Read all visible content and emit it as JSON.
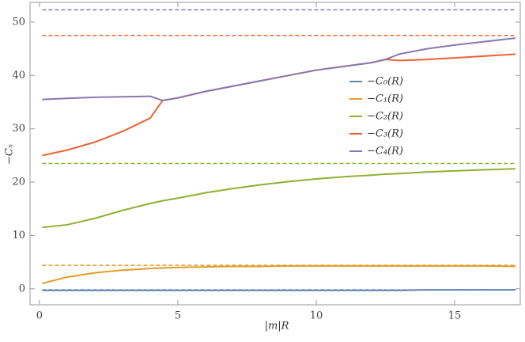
{
  "chart_data": {
    "type": "line",
    "x_label": "|m|R",
    "y_label": "−Cₙ",
    "xlim": [
      -0.34,
      17.37
    ],
    "ylim": [
      -3.0,
      53.7
    ],
    "xticks": [
      0,
      5,
      10,
      15
    ],
    "yticks": [
      0,
      10,
      20,
      30,
      40,
      50
    ],
    "x": [
      0.1,
      1,
      2,
      3,
      4,
      4.45,
      5,
      6,
      7,
      8,
      9,
      10,
      11,
      12,
      12.5,
      13,
      14,
      15,
      16,
      17.2
    ],
    "series": [
      {
        "name": "−C₀(R)",
        "color": "#5e81b5",
        "values": [
          -0.3,
          -0.3,
          -0.3,
          -0.3,
          -0.3,
          -0.3,
          -0.3,
          -0.3,
          -0.3,
          -0.3,
          -0.3,
          -0.3,
          -0.3,
          -0.3,
          -0.3,
          -0.3,
          -0.2,
          -0.2,
          -0.2,
          -0.2
        ]
      },
      {
        "name": "−C₁(R)",
        "color": "#e19c24",
        "values": [
          1.0,
          2.2,
          3.0,
          3.5,
          3.8,
          3.9,
          4.0,
          4.1,
          4.2,
          4.2,
          4.3,
          4.3,
          4.3,
          4.3,
          4.3,
          4.3,
          4.3,
          4.3,
          4.3,
          4.2
        ]
      },
      {
        "name": "−C₂(R)",
        "color": "#8fb032",
        "values": [
          11.5,
          12.0,
          13.2,
          14.7,
          16.0,
          16.5,
          17.0,
          18.0,
          18.8,
          19.5,
          20.1,
          20.6,
          21.0,
          21.3,
          21.5,
          21.6,
          21.9,
          22.1,
          22.3,
          22.5
        ]
      },
      {
        "name": "−C₃(R)",
        "color": "#eb6235",
        "values": [
          25.0,
          26.0,
          27.5,
          29.5,
          32.0,
          35.3,
          35.8,
          37.0,
          38.0,
          39.0,
          40.0,
          41.0,
          41.7,
          42.4,
          43.0,
          42.8,
          43.0,
          43.3,
          43.6,
          44.0
        ]
      },
      {
        "name": "−C₄(R)",
        "color": "#8778b3",
        "values": [
          35.5,
          35.7,
          35.9,
          36.0,
          36.1,
          35.3,
          35.8,
          37.0,
          38.0,
          39.0,
          40.0,
          41.0,
          41.7,
          42.4,
          43.0,
          44.0,
          45.0,
          45.7,
          46.3,
          47.0
        ]
      }
    ],
    "reference_lines": [
      {
        "value": -0.2,
        "color": "#5e81b5"
      },
      {
        "value": 4.4,
        "color": "#e19c24"
      },
      {
        "value": 23.5,
        "color": "#8fb032"
      },
      {
        "value": 47.5,
        "color": "#eb6235"
      },
      {
        "value": 52.3,
        "color": "#8778b3"
      }
    ]
  }
}
